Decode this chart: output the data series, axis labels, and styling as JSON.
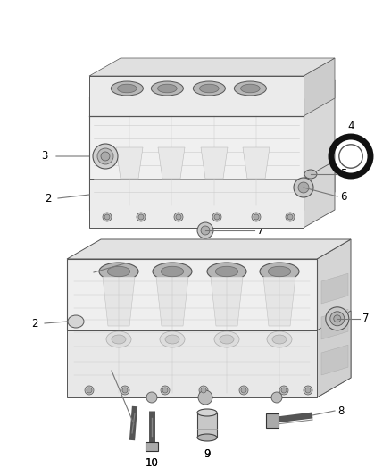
{
  "background_color": "#ffffff",
  "fig_width": 4.38,
  "fig_height": 5.33,
  "dpi": 100,
  "line_color": "#888888",
  "text_color": "#000000",
  "font_size": 8.5,
  "block_line": "#555555",
  "block_fill": "#f5f5f5",
  "block_shadow": "#e0e0e0",
  "block_dark": "#d0d0d0",
  "bore_fill": "#c8c8c8",
  "bore_inner": "#b0b0b0"
}
